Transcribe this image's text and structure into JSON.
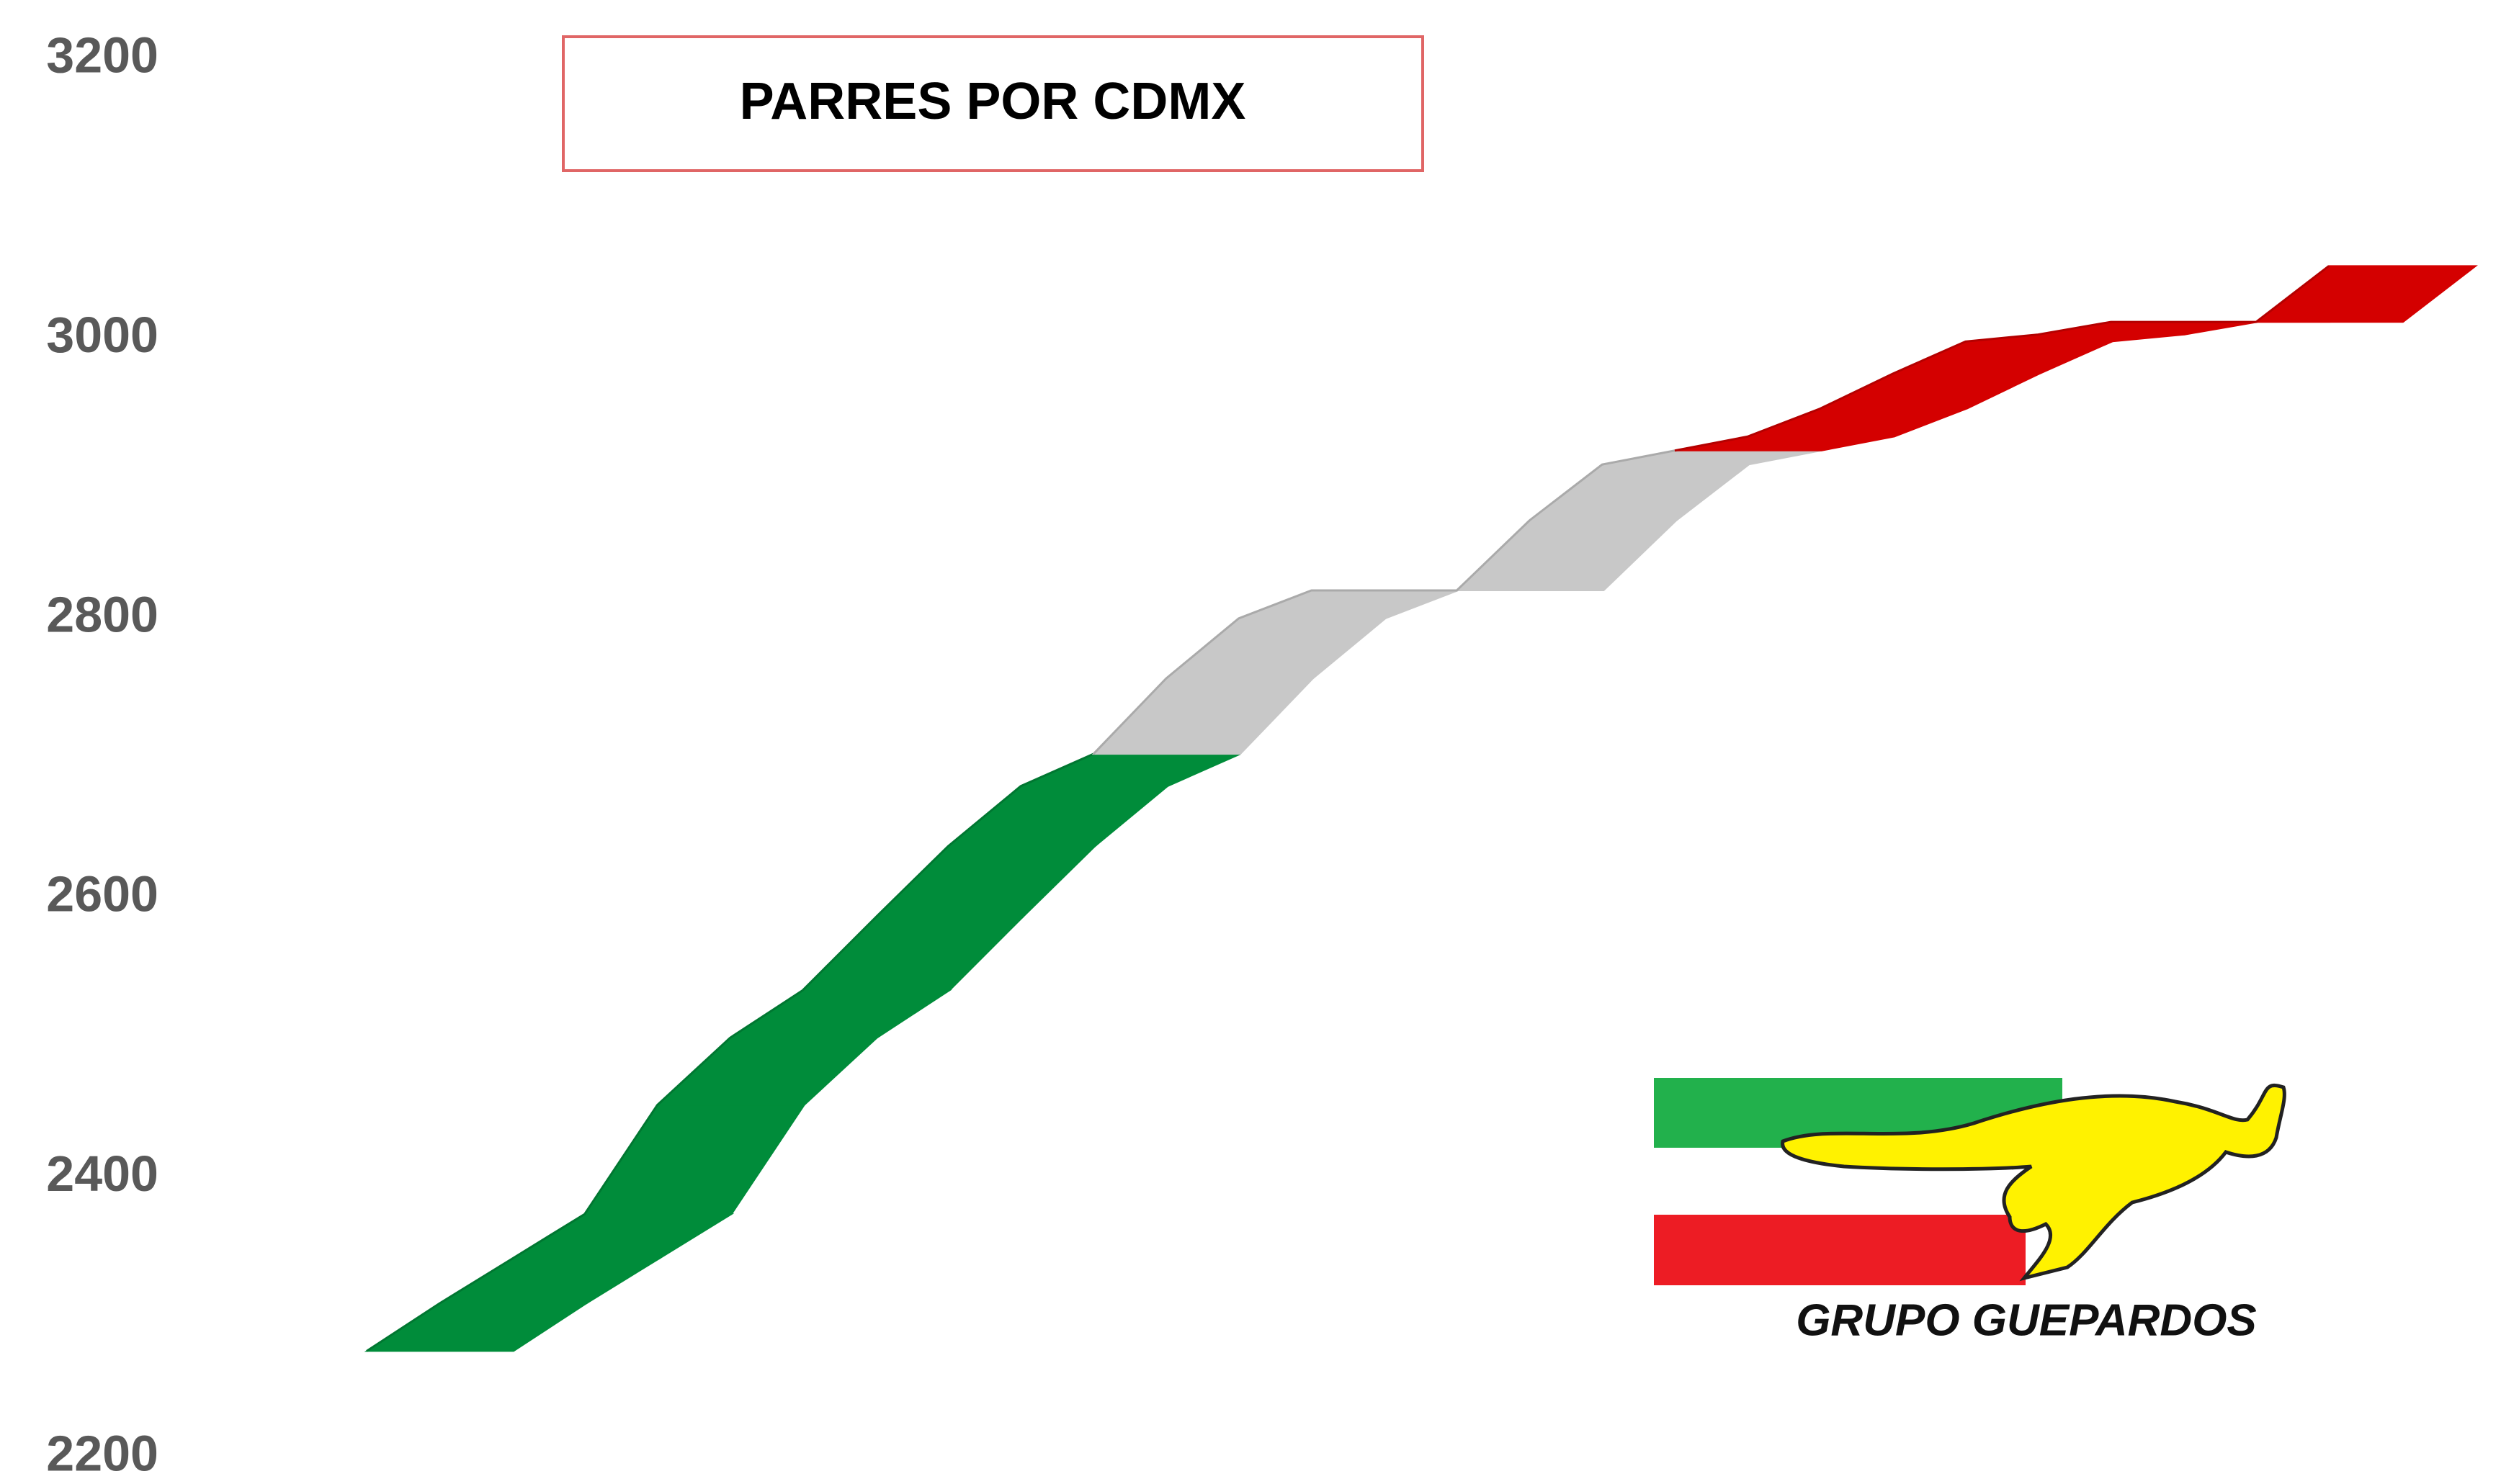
{
  "chart_data": {
    "type": "line",
    "title": "PARRES POR CDMX",
    "logo_text": "GRUPO GUEPARDOS",
    "categories": [
      null,
      null,
      null,
      null,
      null,
      null,
      null,
      null,
      null,
      null,
      null,
      null,
      null,
      null,
      null,
      null,
      null,
      null,
      null,
      null,
      null,
      null,
      null,
      null,
      null,
      null,
      null,
      null
    ],
    "series": [
      {
        "color": "#008c3a",
        "values": [
          2276,
          2310,
          2342,
          2374,
          2452,
          2500,
          2534,
          2586,
          2637,
          2680,
          2703,
          null,
          null,
          null,
          null,
          null,
          null,
          null,
          null,
          null,
          null,
          null,
          null,
          null,
          null,
          null,
          null,
          null
        ]
      },
      {
        "color": "#c8c8c8",
        "values": [
          null,
          null,
          null,
          null,
          null,
          null,
          null,
          null,
          null,
          null,
          2703,
          2757,
          2800,
          2820,
          2820,
          2820,
          2870,
          2910,
          2920,
          null,
          null,
          null,
          null,
          null,
          null,
          null,
          null,
          null
        ]
      },
      {
        "color": "#d40000",
        "values": [
          null,
          null,
          null,
          null,
          null,
          null,
          null,
          null,
          null,
          null,
          null,
          null,
          null,
          null,
          null,
          null,
          null,
          null,
          2920,
          2930,
          2950,
          2975,
          2998,
          3003,
          3012,
          3012,
          3012,
          3052
        ]
      }
    ],
    "ylim": [
      2200,
      3200
    ],
    "yticks": [
      2200,
      2400,
      2600,
      2800,
      3000,
      3200
    ],
    "grid": false
  }
}
